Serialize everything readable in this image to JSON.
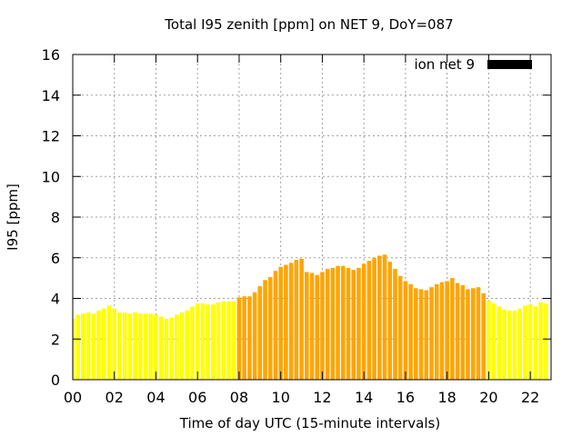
{
  "chart_data": {
    "type": "bar",
    "title": "Total I95 zenith [ppm] on NET 9, DoY=087",
    "xlabel": "Time of day UTC (15-minute intervals)",
    "ylabel": "I95 [ppm]",
    "ylim": [
      0,
      16
    ],
    "yticks": [
      "0",
      "2",
      "4",
      "6",
      "8",
      "10",
      "12",
      "14",
      "16"
    ],
    "xlim": [
      0,
      23
    ],
    "xticks": [
      "00",
      "02",
      "04",
      "06",
      "08",
      "10",
      "12",
      "14",
      "16",
      "18",
      "20",
      "22"
    ],
    "grid": true,
    "legend": {
      "label": "ion net 9",
      "color": "#000000",
      "position": "top-right"
    },
    "colors": {
      "low": "#ffff00",
      "high": "#ffa500"
    },
    "bar_width_hours": 0.2,
    "x_hours": [
      0.0,
      0.25,
      0.5,
      0.75,
      1.0,
      1.25,
      1.5,
      1.75,
      2.0,
      2.25,
      2.5,
      2.75,
      3.0,
      3.25,
      3.5,
      3.75,
      4.0,
      4.25,
      4.5,
      4.75,
      5.0,
      5.25,
      5.5,
      5.75,
      6.0,
      6.25,
      6.5,
      6.75,
      7.0,
      7.25,
      7.5,
      7.75,
      8.0,
      8.25,
      8.5,
      8.75,
      9.0,
      9.25,
      9.5,
      9.75,
      10.0,
      10.25,
      10.5,
      10.75,
      11.0,
      11.25,
      11.5,
      11.75,
      12.0,
      12.25,
      12.5,
      12.75,
      13.0,
      13.25,
      13.5,
      13.75,
      14.0,
      14.25,
      14.5,
      14.75,
      15.0,
      15.25,
      15.5,
      15.75,
      16.0,
      16.25,
      16.5,
      16.75,
      17.0,
      17.25,
      17.5,
      17.75,
      18.0,
      18.25,
      18.5,
      18.75,
      19.0,
      19.25,
      19.5,
      19.75,
      20.0,
      20.25,
      20.5,
      20.75,
      21.0,
      21.25,
      21.5,
      21.75,
      22.0,
      22.25,
      22.5,
      22.75
    ],
    "values": [
      3.0,
      3.2,
      3.25,
      3.3,
      3.25,
      3.4,
      3.5,
      3.65,
      3.5,
      3.3,
      3.3,
      3.25,
      3.3,
      3.25,
      3.25,
      3.25,
      3.2,
      3.1,
      3.0,
      3.05,
      3.2,
      3.3,
      3.4,
      3.6,
      3.75,
      3.75,
      3.7,
      3.7,
      3.8,
      3.85,
      3.85,
      3.85,
      4.05,
      4.1,
      4.1,
      4.3,
      4.6,
      4.9,
      5.05,
      5.35,
      5.55,
      5.65,
      5.75,
      5.9,
      5.95,
      5.3,
      5.25,
      5.15,
      5.3,
      5.45,
      5.5,
      5.6,
      5.6,
      5.5,
      5.4,
      5.5,
      5.7,
      5.85,
      6.0,
      6.1,
      6.15,
      5.8,
      5.45,
      5.1,
      4.85,
      4.7,
      4.5,
      4.45,
      4.4,
      4.55,
      4.7,
      4.8,
      4.85,
      5.0,
      4.75,
      4.65,
      4.45,
      4.5,
      4.55,
      4.25,
      3.9,
      3.75,
      3.6,
      3.45,
      3.4,
      3.4,
      3.5,
      3.65,
      3.7,
      3.6,
      3.8,
      3.75
    ],
    "series_level": [
      "low",
      "low",
      "low",
      "low",
      "low",
      "low",
      "low",
      "low",
      "low",
      "low",
      "low",
      "low",
      "low",
      "low",
      "low",
      "low",
      "low",
      "low",
      "low",
      "low",
      "low",
      "low",
      "low",
      "low",
      "low",
      "low",
      "low",
      "low",
      "low",
      "low",
      "low",
      "low",
      "high",
      "high",
      "high",
      "high",
      "high",
      "high",
      "high",
      "high",
      "high",
      "high",
      "high",
      "high",
      "high",
      "high",
      "high",
      "high",
      "high",
      "high",
      "high",
      "high",
      "high",
      "high",
      "high",
      "high",
      "high",
      "high",
      "high",
      "high",
      "high",
      "high",
      "high",
      "high",
      "high",
      "high",
      "high",
      "high",
      "high",
      "high",
      "high",
      "high",
      "high",
      "high",
      "high",
      "high",
      "high",
      "high",
      "high",
      "high",
      "low",
      "low",
      "low",
      "low",
      "low",
      "low",
      "low",
      "low",
      "low",
      "low",
      "low",
      "low"
    ]
  }
}
